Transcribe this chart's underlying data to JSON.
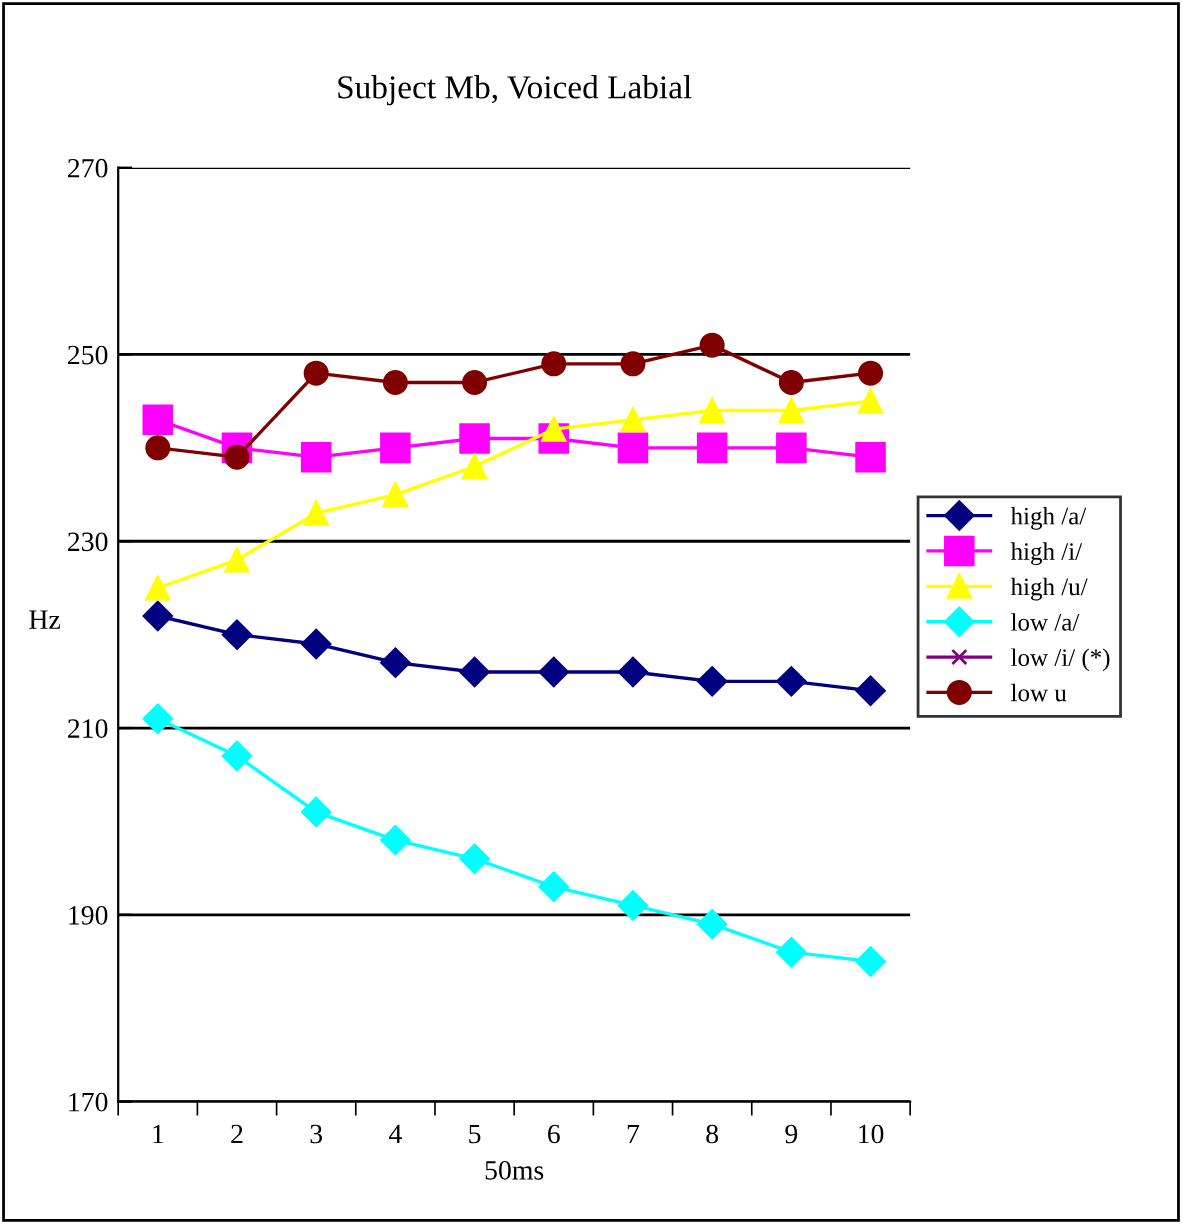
{
  "chart_data": {
    "type": "line",
    "title": "Subject Mb, Voiced Labial",
    "xlabel": "50ms",
    "ylabel": "Hz",
    "categories": [
      "1",
      "2",
      "3",
      "4",
      "5",
      "6",
      "7",
      "8",
      "9",
      "10"
    ],
    "ylim": [
      170,
      270
    ],
    "yticks": [
      170,
      190,
      210,
      230,
      250,
      270
    ],
    "grid": "y",
    "legend": "right",
    "series": [
      {
        "name": "high /a/",
        "color": "#000080",
        "marker": "diamond",
        "values": [
          222,
          220,
          219,
          217,
          216,
          216,
          216,
          215,
          215,
          214
        ]
      },
      {
        "name": "high /i/",
        "color": "#ff00ff",
        "marker": "square",
        "values": [
          243,
          240,
          239,
          240,
          241,
          241,
          240,
          240,
          240,
          239
        ]
      },
      {
        "name": "high /u/",
        "color": "#ffff00",
        "marker": "triangle",
        "values": [
          225,
          228,
          233,
          235,
          238,
          242,
          243,
          244,
          244,
          245
        ]
      },
      {
        "name": "low /a/",
        "color": "#00ffff",
        "marker": "diamond",
        "values": [
          211,
          207,
          201,
          198,
          196,
          193,
          191,
          189,
          186,
          185
        ]
      },
      {
        "name": "low /i/ (*)",
        "color": "#800080",
        "marker": "cross",
        "values": [
          null,
          null,
          null,
          null,
          null,
          null,
          null,
          null,
          null,
          null
        ]
      },
      {
        "name": "low u",
        "color": "#800000",
        "marker": "circle",
        "values": [
          240,
          239,
          248,
          247,
          247,
          249,
          249,
          251,
          247,
          248
        ]
      }
    ]
  }
}
